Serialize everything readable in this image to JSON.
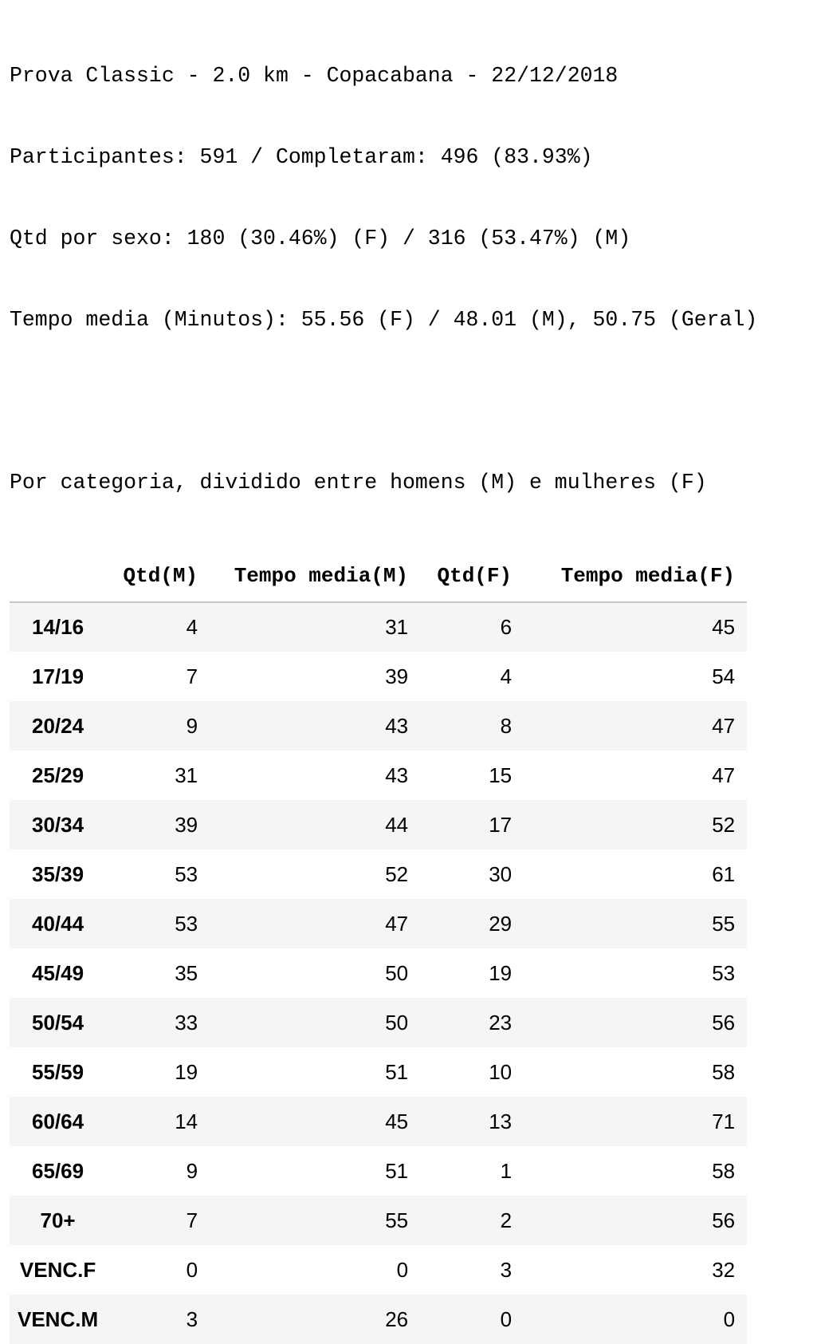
{
  "summary": {
    "line1": "Prova Classic - 2.0 km - Copacabana - 22/12/2018",
    "line2": "Participantes: 591 / Completaram: 496 (83.93%)",
    "line3": "Qtd por sexo: 180 (30.46%) (F) / 316 (53.47%) (M)",
    "line4": "Tempo media (Minutos): 55.56 (F) / 48.01 (M), 50.75 (Geral)",
    "line5": "Por categoria, dividido entre homens (M) e mulheres (F)"
  },
  "table": {
    "columns": [
      "Qtd(M)",
      "Tempo media(M)",
      "Qtd(F)",
      "Tempo media(F)"
    ],
    "rows": [
      {
        "category": "14/16",
        "qtd_m": "4",
        "tempo_m": "31",
        "qtd_f": "6",
        "tempo_f": "45"
      },
      {
        "category": "17/19",
        "qtd_m": "7",
        "tempo_m": "39",
        "qtd_f": "4",
        "tempo_f": "54"
      },
      {
        "category": "20/24",
        "qtd_m": "9",
        "tempo_m": "43",
        "qtd_f": "8",
        "tempo_f": "47"
      },
      {
        "category": "25/29",
        "qtd_m": "31",
        "tempo_m": "43",
        "qtd_f": "15",
        "tempo_f": "47"
      },
      {
        "category": "30/34",
        "qtd_m": "39",
        "tempo_m": "44",
        "qtd_f": "17",
        "tempo_f": "52"
      },
      {
        "category": "35/39",
        "qtd_m": "53",
        "tempo_m": "52",
        "qtd_f": "30",
        "tempo_f": "61"
      },
      {
        "category": "40/44",
        "qtd_m": "53",
        "tempo_m": "47",
        "qtd_f": "29",
        "tempo_f": "55"
      },
      {
        "category": "45/49",
        "qtd_m": "35",
        "tempo_m": "50",
        "qtd_f": "19",
        "tempo_f": "53"
      },
      {
        "category": "50/54",
        "qtd_m": "33",
        "tempo_m": "50",
        "qtd_f": "23",
        "tempo_f": "56"
      },
      {
        "category": "55/59",
        "qtd_m": "19",
        "tempo_m": "51",
        "qtd_f": "10",
        "tempo_f": "58"
      },
      {
        "category": "60/64",
        "qtd_m": "14",
        "tempo_m": "45",
        "qtd_f": "13",
        "tempo_f": "71"
      },
      {
        "category": "65/69",
        "qtd_m": "9",
        "tempo_m": "51",
        "qtd_f": "1",
        "tempo_f": "58"
      },
      {
        "category": "70+",
        "qtd_m": "7",
        "tempo_m": "55",
        "qtd_f": "2",
        "tempo_f": "56"
      },
      {
        "category": "VENC.F",
        "qtd_m": "0",
        "tempo_m": "0",
        "qtd_f": "3",
        "tempo_f": "32"
      },
      {
        "category": "VENC.M",
        "qtd_m": "3",
        "tempo_m": "26",
        "qtd_f": "0",
        "tempo_f": "0"
      }
    ]
  },
  "colors": {
    "row_stripe": "#f5f5f5",
    "header_rule": "#c8c8c8"
  }
}
